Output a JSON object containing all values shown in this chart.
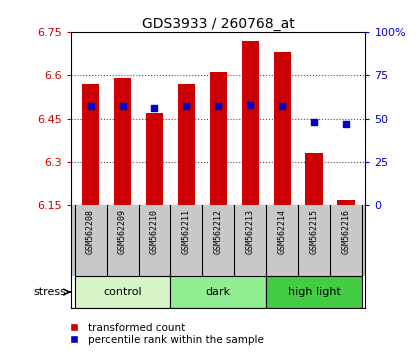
{
  "title": "GDS3933 / 260768_at",
  "samples": [
    "GSM562208",
    "GSM562209",
    "GSM562210",
    "GSM562211",
    "GSM562212",
    "GSM562213",
    "GSM562214",
    "GSM562215",
    "GSM562216"
  ],
  "transformed_counts": [
    6.57,
    6.59,
    6.47,
    6.57,
    6.61,
    6.72,
    6.68,
    6.33,
    6.17
  ],
  "percentile_ranks": [
    57,
    57,
    56,
    57,
    57,
    58,
    57,
    48,
    47
  ],
  "baseline": 6.15,
  "ylim_left": [
    6.15,
    6.75
  ],
  "ylim_right": [
    0,
    100
  ],
  "yticks_left": [
    6.15,
    6.3,
    6.45,
    6.6,
    6.75
  ],
  "yticks_right": [
    0,
    25,
    50,
    75,
    100
  ],
  "ytick_labels_left": [
    "6.15",
    "6.3",
    "6.45",
    "6.6",
    "6.75"
  ],
  "ytick_labels_right": [
    "0",
    "25",
    "50",
    "75",
    "100%"
  ],
  "groups": [
    {
      "label": "control",
      "indices": [
        0,
        1,
        2
      ],
      "color": "#d8f5c8"
    },
    {
      "label": "dark",
      "indices": [
        3,
        4,
        5
      ],
      "color": "#90ee90"
    },
    {
      "label": "high light",
      "indices": [
        6,
        7,
        8
      ],
      "color": "#44cc44"
    }
  ],
  "bar_color": "#cc0000",
  "dot_color": "#0000cc",
  "bar_width": 0.55,
  "legend_items": [
    {
      "color": "#cc0000",
      "label": "transformed count"
    },
    {
      "color": "#0000cc",
      "label": "percentile rank within the sample"
    }
  ],
  "tick_label_color_left": "#cc0000",
  "tick_label_color_right": "#0000cc",
  "background_sample_row": "#c8c8c8"
}
